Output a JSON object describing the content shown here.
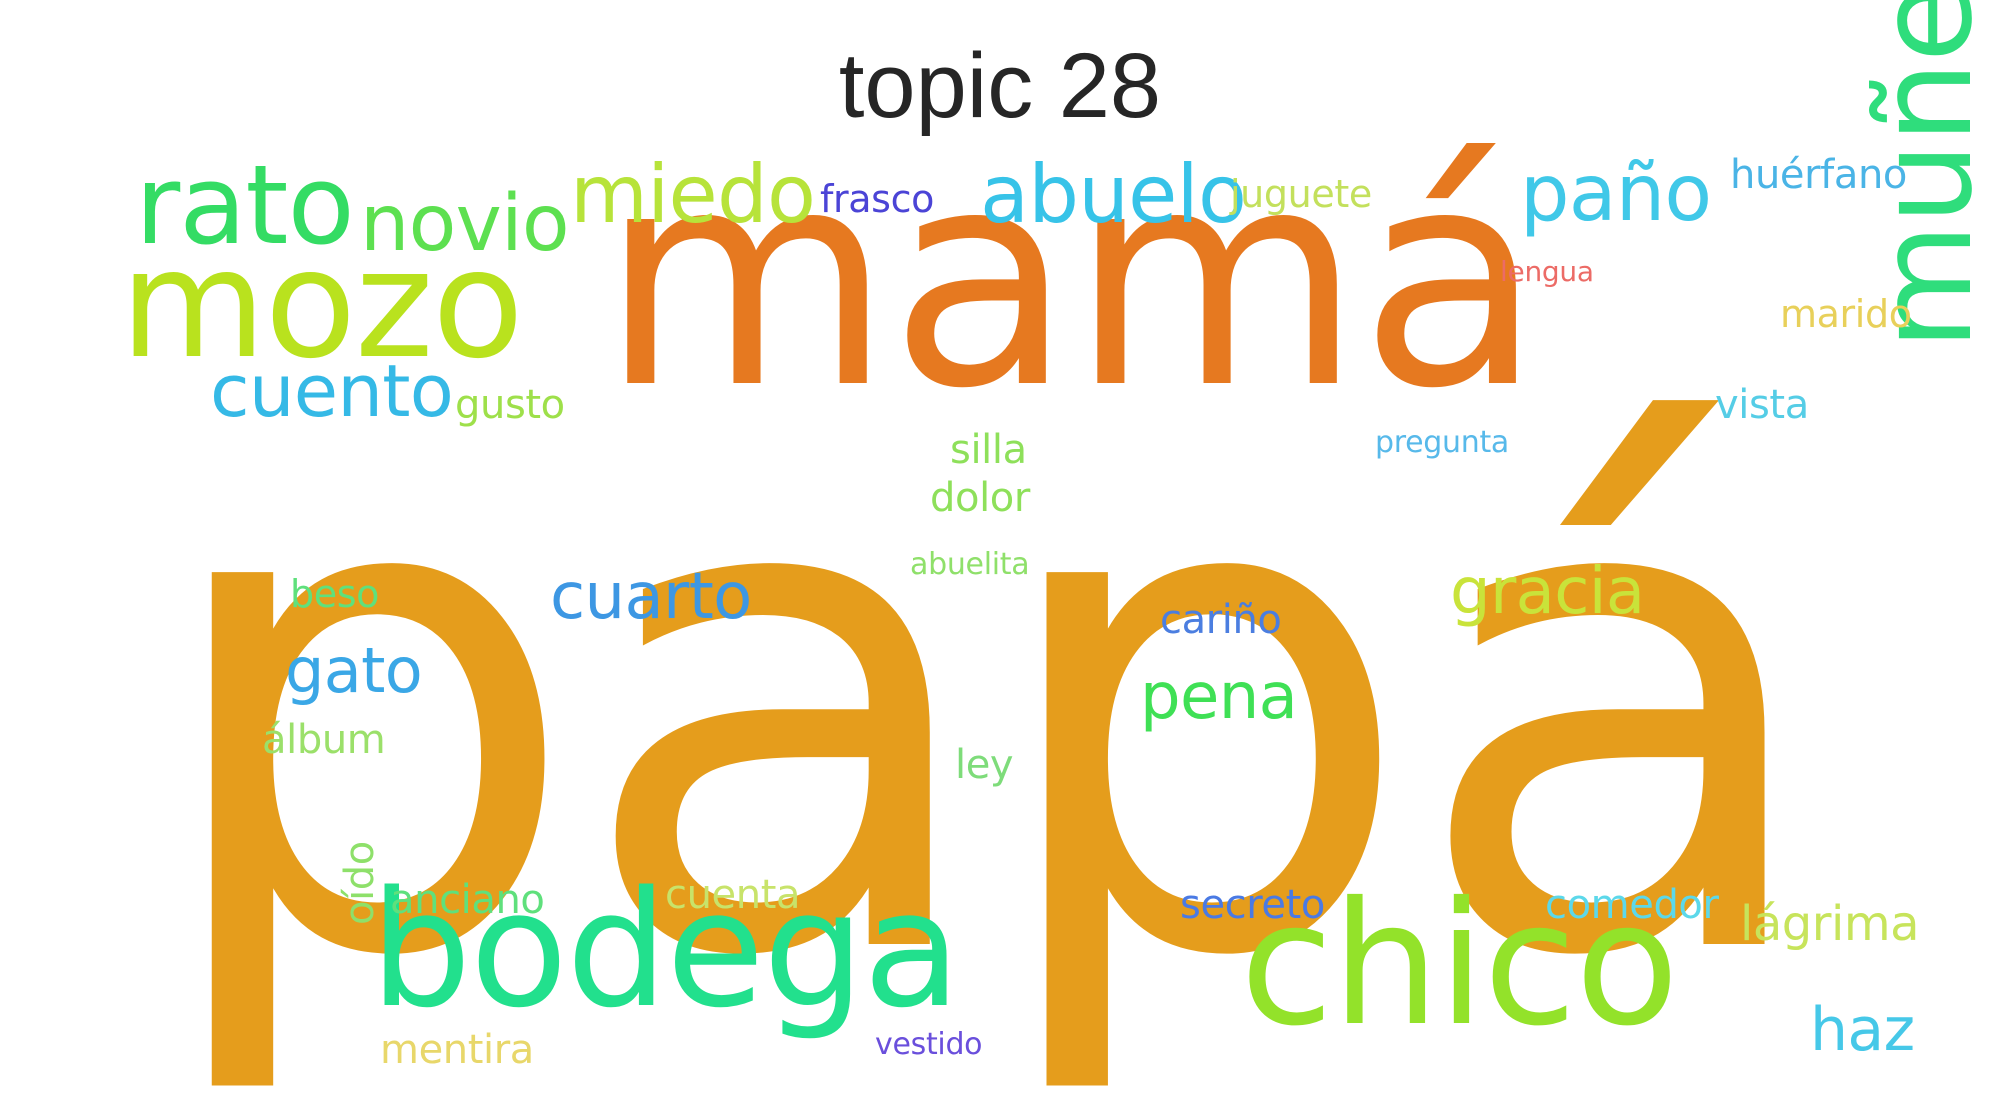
{
  "title": "topic 28",
  "words": [
    {
      "text": "papá",
      "color": "#e59d1c"
    },
    {
      "text": "mamá",
      "color": "#e67920"
    },
    {
      "text": "bodega",
      "color": "#22e08d"
    },
    {
      "text": "chico",
      "color": "#93e22a"
    },
    {
      "text": "mozo",
      "color": "#b9e21e"
    },
    {
      "text": "rato",
      "color": "#34dc64"
    },
    {
      "text": "muñeca",
      "color": "#2fdd7c"
    },
    {
      "text": "abuelo",
      "color": "#37c3e8"
    },
    {
      "text": "paño",
      "color": "#40c8e8"
    },
    {
      "text": "miedo",
      "color": "#b7e33a"
    },
    {
      "text": "novio",
      "color": "#5de050"
    },
    {
      "text": "cuento",
      "color": "#35b9e6"
    },
    {
      "text": "cuarto",
      "color": "#3d97e3"
    },
    {
      "text": "gracia",
      "color": "#c9e33a"
    },
    {
      "text": "gato",
      "color": "#3aa7e6"
    },
    {
      "text": "pena",
      "color": "#3fe055"
    },
    {
      "text": "haz",
      "color": "#46c8e8"
    },
    {
      "text": "lágrima",
      "color": "#c7e45b"
    },
    {
      "text": "huérfano",
      "color": "#4ab4e6"
    },
    {
      "text": "frasco",
      "color": "#4b44d6"
    },
    {
      "text": "juguete",
      "color": "#c3e05c"
    },
    {
      "text": "marido",
      "color": "#e8d05a"
    },
    {
      "text": "lengua",
      "color": "#ec6b66"
    },
    {
      "text": "vista",
      "color": "#55cde6"
    },
    {
      "text": "pregunta",
      "color": "#57b9ea"
    },
    {
      "text": "gusto",
      "color": "#9ee04a"
    },
    {
      "text": "silla",
      "color": "#8ee05a"
    },
    {
      "text": "dolor",
      "color": "#8ee05a"
    },
    {
      "text": "abuelita",
      "color": "#8fe06a"
    },
    {
      "text": "beso",
      "color": "#5fe07c"
    },
    {
      "text": "cariño",
      "color": "#4b7ee0"
    },
    {
      "text": "álbum",
      "color": "#9be06a"
    },
    {
      "text": "ley",
      "color": "#7edc7a"
    },
    {
      "text": "anciano",
      "color": "#5fe07c"
    },
    {
      "text": "cuenta",
      "color": "#c8e36a"
    },
    {
      "text": "secreto",
      "color": "#4a7ae4"
    },
    {
      "text": "comedor",
      "color": "#5cd8ea"
    },
    {
      "text": "oído",
      "color": "#8ee06a"
    },
    {
      "text": "mentira",
      "color": "#e8d76a"
    },
    {
      "text": "vestido",
      "color": "#6a4fdc"
    }
  ]
}
